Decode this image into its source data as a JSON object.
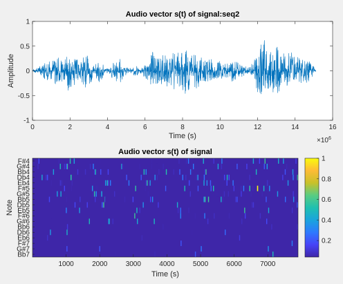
{
  "chart_data": [
    {
      "type": "line",
      "title": "Audio vector s(t) of signal:seq2",
      "xlabel": "Time (s)",
      "ylabel": "Amplitude",
      "xlim": [
        0,
        16
      ],
      "ylim": [
        -1,
        1
      ],
      "x_exponent_label": "×10",
      "x_exponent_power": "6",
      "x_ticks": [
        0,
        2,
        4,
        6,
        8,
        10,
        12,
        14,
        16
      ],
      "y_ticks": [
        -1,
        -0.5,
        0,
        0.5,
        1
      ],
      "y_tick_labels": [
        "-1",
        "-0.5",
        "0",
        "0.5",
        "1"
      ],
      "signal_end": 15.1,
      "envelope": [
        [
          0.0,
          0.02
        ],
        [
          0.5,
          0.12
        ],
        [
          0.8,
          0.22
        ],
        [
          1.0,
          0.18
        ],
        [
          1.3,
          0.3
        ],
        [
          1.6,
          0.22
        ],
        [
          1.9,
          0.4
        ],
        [
          2.2,
          0.3
        ],
        [
          2.5,
          0.2
        ],
        [
          2.8,
          0.35
        ],
        [
          3.1,
          0.25
        ],
        [
          3.3,
          0.1
        ],
        [
          3.6,
          0.25
        ],
        [
          3.9,
          0.05
        ],
        [
          4.1,
          0.05
        ],
        [
          4.3,
          0.2
        ],
        [
          4.6,
          0.3
        ],
        [
          4.9,
          0.1
        ],
        [
          5.2,
          0.05
        ],
        [
          5.5,
          0.12
        ],
        [
          5.8,
          0.05
        ],
        [
          6.1,
          0.2
        ],
        [
          6.4,
          0.4
        ],
        [
          6.7,
          0.25
        ],
        [
          7.0,
          0.35
        ],
        [
          7.3,
          0.3
        ],
        [
          7.6,
          0.45
        ],
        [
          7.9,
          0.35
        ],
        [
          8.2,
          0.55
        ],
        [
          8.5,
          0.3
        ],
        [
          8.8,
          0.4
        ],
        [
          9.1,
          0.25
        ],
        [
          9.4,
          0.3
        ],
        [
          9.7,
          0.15
        ],
        [
          10.0,
          0.2
        ],
        [
          10.3,
          0.15
        ],
        [
          10.6,
          0.22
        ],
        [
          10.9,
          0.18
        ],
        [
          11.2,
          0.12
        ],
        [
          11.5,
          0.08
        ],
        [
          11.8,
          0.2
        ],
        [
          12.1,
          0.55
        ],
        [
          12.3,
          0.75
        ],
        [
          12.5,
          0.4
        ],
        [
          12.8,
          0.45
        ],
        [
          13.1,
          0.5
        ],
        [
          13.4,
          0.35
        ],
        [
          13.7,
          0.45
        ],
        [
          14.0,
          0.3
        ],
        [
          14.3,
          0.25
        ],
        [
          14.6,
          0.25
        ],
        [
          14.9,
          0.15
        ],
        [
          15.1,
          0.02
        ]
      ],
      "color": "#0072bd"
    },
    {
      "type": "heatmap",
      "title": "Audio vector s(t) of signal",
      "xlabel": "Time (s)",
      "ylabel": "Note",
      "xlim": [
        0,
        7900
      ],
      "x_ticks": [
        1000,
        2000,
        3000,
        4000,
        5000,
        6000,
        7000
      ],
      "notes": [
        "F#4",
        "G#4",
        "Bb4",
        "Db4",
        "Eb4",
        "F#5",
        "G#5",
        "Bb5",
        "Db5",
        "Eb5",
        "F#6",
        "G#6",
        "Bb6",
        "Db6",
        "Eb6",
        "F#7",
        "G#7",
        "Bb7"
      ],
      "colorbar_ticks": [
        0.2,
        0.4,
        0.6,
        0.8,
        1
      ],
      "colorbar_range": [
        0.04,
        1
      ],
      "background_value": 0.04,
      "colormap": [
        "#3e26a8",
        "#4743f8",
        "#2d79fe",
        "#1aa4dd",
        "#1fc0b0",
        "#59cc82",
        "#c8c129",
        "#fdbb36",
        "#f9fb0e"
      ]
    }
  ]
}
